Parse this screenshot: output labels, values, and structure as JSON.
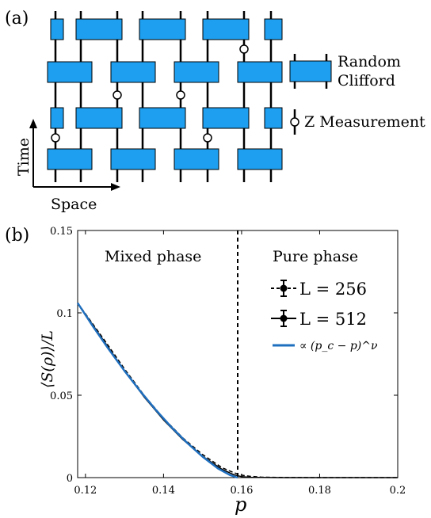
{
  "panel_a": {
    "label": "(a)",
    "legend_clifford": [
      "Random",
      "Clifford"
    ],
    "legend_measurement": "Z Measurement",
    "axis_time": "Time",
    "axis_space": "Space",
    "gate_color": "#1E9FEF"
  },
  "panel_b": {
    "label": "(b)"
  },
  "chart_data": {
    "type": "line",
    "xlabel": "p",
    "ylabel": "⟨S(ρ)⟩/L",
    "xlim": [
      0.118,
      0.2
    ],
    "ylim": [
      0,
      0.15
    ],
    "xticks": [
      "0.12",
      "0.14",
      "0.16",
      "0.18",
      "0.2"
    ],
    "yticks": [
      "0",
      "0.05",
      "0.1",
      "0.15"
    ],
    "critical_p": 0.159,
    "annotations": [
      "Mixed phase",
      "Pure phase"
    ],
    "legend": {
      "placement": "top-right",
      "entries": [
        "L = 256",
        "L = 512",
        "∝ (p_c − p)^ν"
      ]
    },
    "series": [
      {
        "name": "L = 256",
        "style": "dashed-black",
        "x": [
          0.118,
          0.125,
          0.13,
          0.135,
          0.14,
          0.145,
          0.15,
          0.155,
          0.158,
          0.16,
          0.162,
          0.165,
          0.17,
          0.18,
          0.19,
          0.2
        ],
        "y": [
          0.106,
          0.083,
          0.066,
          0.05,
          0.036,
          0.024,
          0.014,
          0.006,
          0.003,
          0.0015,
          0.0008,
          0.0003,
          0.0001,
          0.0,
          0.0,
          0.0
        ]
      },
      {
        "name": "L = 512",
        "style": "solid-black",
        "x": [
          0.118,
          0.125,
          0.13,
          0.135,
          0.14,
          0.145,
          0.15,
          0.155,
          0.158,
          0.16,
          0.162,
          0.165,
          0.17,
          0.18,
          0.19,
          0.2
        ],
        "y": [
          0.106,
          0.082,
          0.065,
          0.049,
          0.035,
          0.023,
          0.013,
          0.005,
          0.0018,
          0.0006,
          0.0002,
          0.0001,
          0.0,
          0.0,
          0.0,
          0.0
        ]
      },
      {
        "name": "∝ (p_c − p)^ν",
        "style": "solid-blue",
        "color": "#1f6fbf",
        "x": [
          0.118,
          0.122,
          0.126,
          0.13,
          0.134,
          0.138,
          0.142,
          0.146,
          0.15,
          0.154,
          0.157,
          0.159
        ],
        "y": [
          0.106,
          0.0915,
          0.0778,
          0.0648,
          0.0526,
          0.0412,
          0.0307,
          0.0212,
          0.0127,
          0.0055,
          0.0016,
          0.0
        ]
      }
    ]
  }
}
